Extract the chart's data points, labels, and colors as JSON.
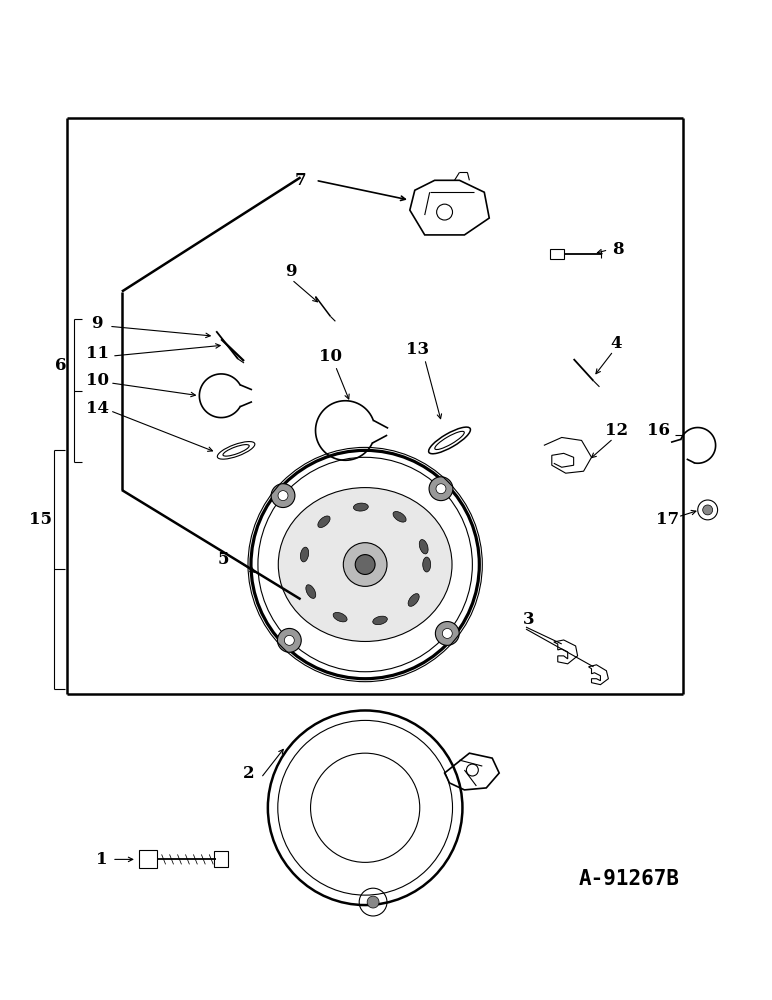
{
  "bg_color": "#ffffff",
  "line_color": "#000000",
  "fig_width": 7.72,
  "fig_height": 10.0,
  "diagram_code": "A-91267B",
  "dpi": 100
}
